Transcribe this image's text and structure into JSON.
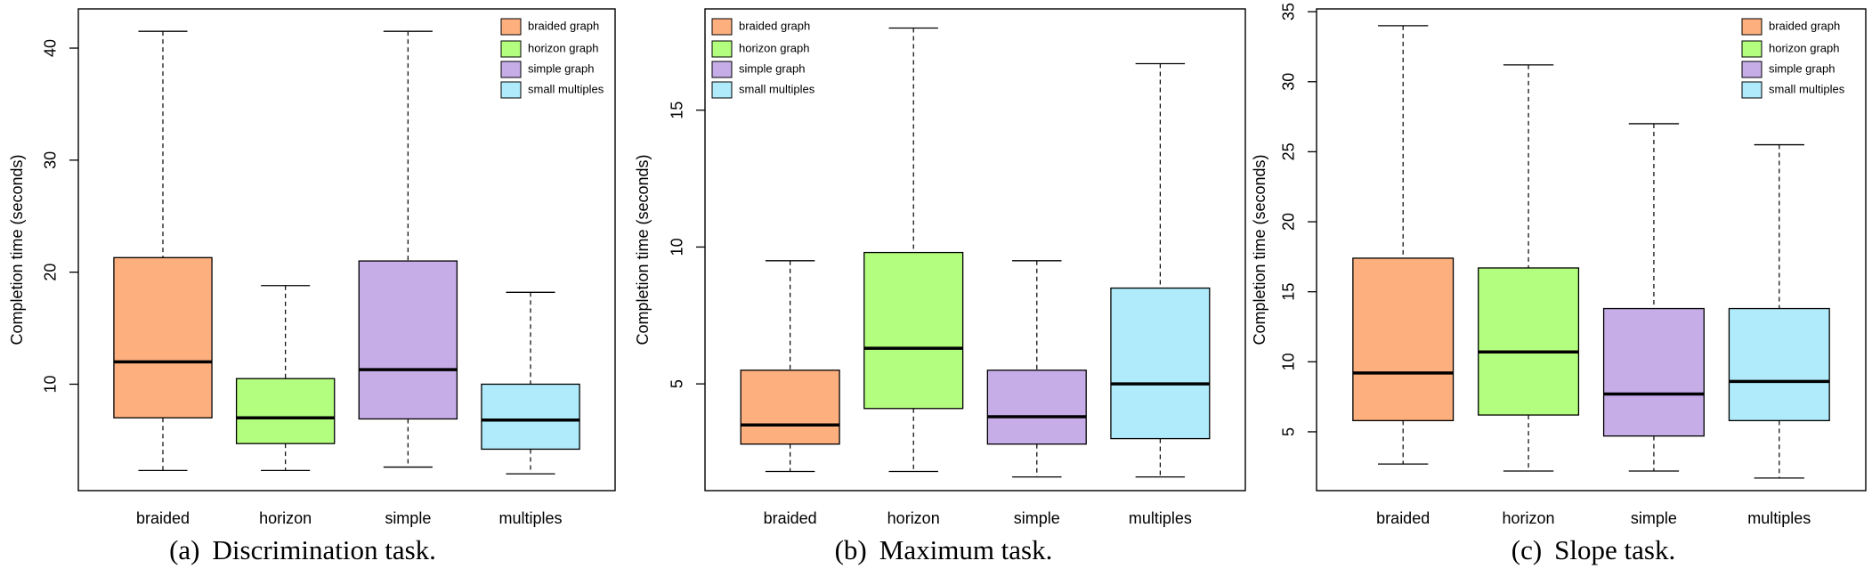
{
  "colors": {
    "braided": "#FDB07E",
    "horizon": "#B3FE7E",
    "simple": "#C6ADE8",
    "multiples": "#AFEBFB"
  },
  "captions": [
    {
      "label": "(a)",
      "text": "Discrimination task."
    },
    {
      "label": "(b)",
      "text": "Maximum task."
    },
    {
      "label": "(c)",
      "text": "Slope task."
    }
  ],
  "chart_data": [
    {
      "type": "boxplot",
      "ylabel": "Completion time (seconds)",
      "ylim": [
        0.5,
        43.5
      ],
      "yticks": [
        10,
        20,
        30,
        40
      ],
      "categories": [
        "braided",
        "horizon",
        "simple",
        "multiples"
      ],
      "legend": [
        "braided graph",
        "horizon graph",
        "simple graph",
        "small multiples"
      ],
      "legend_position": "top-right",
      "boxes": [
        {
          "min": 2.3,
          "q1": 7.0,
          "median": 12.0,
          "q3": 21.3,
          "max": 41.5
        },
        {
          "min": 2.3,
          "q1": 4.7,
          "median": 7.0,
          "q3": 10.5,
          "max": 18.8
        },
        {
          "min": 2.6,
          "q1": 6.9,
          "median": 11.3,
          "q3": 21.0,
          "max": 41.5
        },
        {
          "min": 2.0,
          "q1": 4.2,
          "median": 6.8,
          "q3": 10.0,
          "max": 18.2
        }
      ]
    },
    {
      "type": "boxplot",
      "ylabel": "Completion time (seconds)",
      "ylim": [
        1.1,
        18.7
      ],
      "yticks": [
        5,
        10,
        15
      ],
      "categories": [
        "braided",
        "horizon",
        "simple",
        "multiples"
      ],
      "legend": [
        "braided graph",
        "horizon graph",
        "simple graph",
        "small multiples"
      ],
      "legend_position": "top-left",
      "boxes": [
        {
          "min": 1.8,
          "q1": 2.8,
          "median": 3.5,
          "q3": 5.5,
          "max": 9.5
        },
        {
          "min": 1.8,
          "q1": 4.1,
          "median": 6.3,
          "q3": 9.8,
          "max": 18.0
        },
        {
          "min": 1.6,
          "q1": 2.8,
          "median": 3.8,
          "q3": 5.5,
          "max": 9.5
        },
        {
          "min": 1.6,
          "q1": 3.0,
          "median": 5.0,
          "q3": 8.5,
          "max": 16.7
        }
      ]
    },
    {
      "type": "boxplot",
      "ylabel": "Completion time (seconds)",
      "ylim": [
        0.8,
        35.2
      ],
      "yticks": [
        5,
        10,
        15,
        20,
        25,
        30,
        35
      ],
      "categories": [
        "braided",
        "horizon",
        "simple",
        "multiples"
      ],
      "legend": [
        "braided graph",
        "horizon graph",
        "simple graph",
        "small multiples"
      ],
      "legend_position": "top-right",
      "boxes": [
        {
          "min": 2.7,
          "q1": 5.8,
          "median": 9.2,
          "q3": 17.4,
          "max": 34.0
        },
        {
          "min": 2.2,
          "q1": 6.2,
          "median": 10.7,
          "q3": 16.7,
          "max": 31.2
        },
        {
          "min": 2.2,
          "q1": 4.7,
          "median": 7.7,
          "q3": 13.8,
          "max": 27.0
        },
        {
          "min": 1.7,
          "q1": 5.8,
          "median": 8.6,
          "q3": 13.8,
          "max": 25.5
        }
      ]
    }
  ]
}
